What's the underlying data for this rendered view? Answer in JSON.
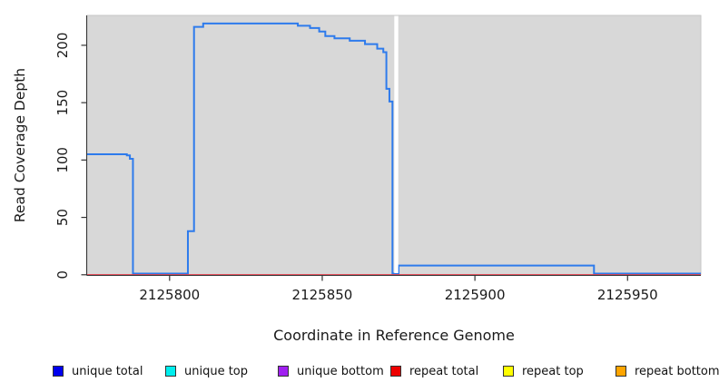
{
  "chart_data": {
    "type": "line",
    "title": "",
    "xlabel": "Coordinate in Reference Genome",
    "ylabel": "Read Coverage Depth",
    "xlim": [
      2125773,
      2125974
    ],
    "ylim": [
      0,
      225
    ],
    "xticks": [
      2125800,
      2125850,
      2125900,
      2125950
    ],
    "yticks": [
      0,
      50,
      100,
      150,
      200
    ],
    "grid": false,
    "plot_bg": "#d8d8d8",
    "plot_border": "#c6c6c6",
    "gap_region": {
      "x_start": 2125873.6,
      "x_end": 2125874.9,
      "color": "#ffffff"
    },
    "series": [
      {
        "name": "unique total",
        "line_color": "#2e7bec",
        "step_points": [
          [
            2125773,
            104
          ],
          [
            2125786,
            103
          ],
          [
            2125787,
            100
          ],
          [
            2125788,
            0
          ],
          [
            2125806,
            37
          ],
          [
            2125808,
            215
          ],
          [
            2125811,
            218
          ],
          [
            2125842,
            216
          ],
          [
            2125846,
            214
          ],
          [
            2125849,
            211
          ],
          [
            2125851,
            207
          ],
          [
            2125854,
            205
          ],
          [
            2125859,
            203
          ],
          [
            2125864,
            200
          ],
          [
            2125868,
            196
          ],
          [
            2125870,
            193
          ],
          [
            2125871,
            161
          ],
          [
            2125872,
            150
          ],
          [
            2125873,
            0
          ],
          [
            2125875,
            7
          ],
          [
            2125939,
            0
          ]
        ]
      },
      {
        "name": "repeat total",
        "line_color": "#e8404e",
        "step_points": [
          [
            2125773,
            0
          ],
          [
            2125974,
            0
          ]
        ]
      }
    ],
    "legend_position": "bottom",
    "legend": [
      {
        "label": "unique total",
        "color": "#0000ee"
      },
      {
        "label": "unique top",
        "color": "#00eeee"
      },
      {
        "label": "unique bottom",
        "color": "#a020f0"
      },
      {
        "label": "repeat total",
        "color": "#ee0000"
      },
      {
        "label": "repeat top",
        "color": "#ffff00"
      },
      {
        "label": "repeat bottom",
        "color": "#ffa500"
      }
    ]
  }
}
